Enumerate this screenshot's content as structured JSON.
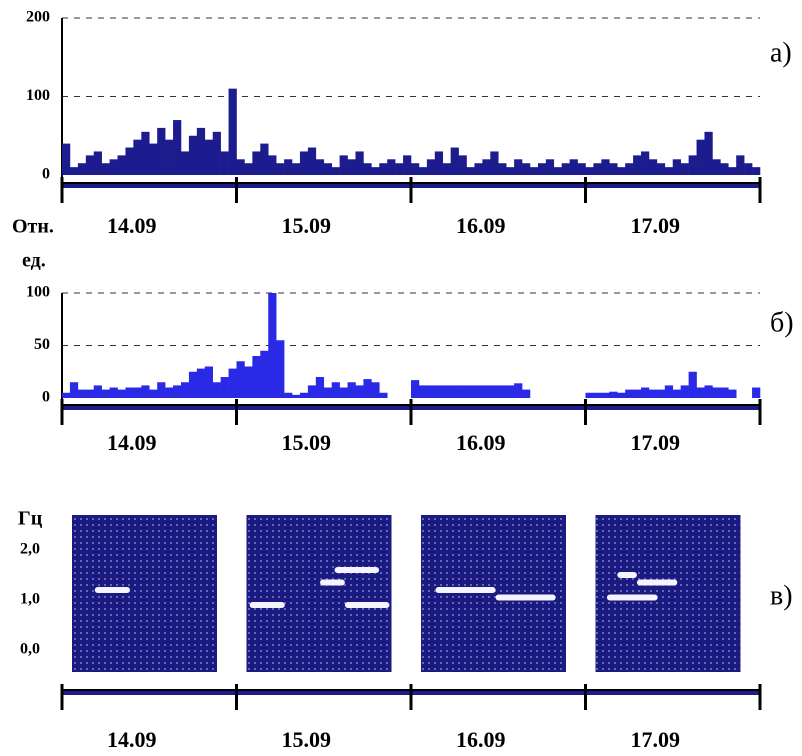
{
  "chart_data": [
    {
      "type": "bar",
      "panel_label": "а)",
      "color": "#1c1c8e",
      "days": [
        "14.09",
        "15.09",
        "16.09",
        "17.09"
      ],
      "values": [
        40,
        10,
        15,
        25,
        30,
        15,
        20,
        25,
        35,
        45,
        55,
        40,
        60,
        45,
        70,
        30,
        50,
        60,
        45,
        55,
        30,
        110,
        20,
        15,
        30,
        40,
        25,
        15,
        20,
        15,
        30,
        35,
        20,
        15,
        10,
        25,
        20,
        30,
        15,
        10,
        15,
        20,
        15,
        25,
        15,
        10,
        20,
        30,
        15,
        35,
        25,
        10,
        15,
        20,
        30,
        15,
        10,
        20,
        15,
        10,
        15,
        20,
        10,
        15,
        20,
        15,
        10,
        15,
        20,
        15,
        10,
        15,
        25,
        30,
        20,
        15,
        10,
        20,
        15,
        25,
        45,
        55,
        20,
        15,
        10,
        25,
        15,
        10
      ],
      "ylim": [
        0,
        200
      ],
      "yticks": [
        0,
        100,
        200
      ],
      "grid": true
    },
    {
      "type": "bar",
      "panel_label": "б)",
      "color": "#2a2ae6",
      "ylabel": [
        "Отн.",
        "ед."
      ],
      "days": [
        "14.09",
        "15.09",
        "16.09",
        "17.09"
      ],
      "values": [
        5,
        15,
        8,
        8,
        12,
        8,
        10,
        8,
        10,
        10,
        12,
        8,
        15,
        10,
        12,
        15,
        25,
        28,
        30,
        15,
        20,
        28,
        35,
        30,
        40,
        45,
        100,
        55,
        5,
        3,
        5,
        12,
        20,
        10,
        15,
        10,
        15,
        12,
        18,
        15,
        5,
        0,
        0,
        0,
        17,
        12,
        12,
        12,
        12,
        12,
        12,
        12,
        12,
        12,
        12,
        12,
        12,
        14,
        8,
        0,
        0,
        0,
        0,
        0,
        0,
        0,
        5,
        5,
        5,
        6,
        5,
        8,
        8,
        10,
        8,
        8,
        12,
        8,
        12,
        25,
        10,
        12,
        10,
        10,
        8,
        0,
        0,
        10
      ],
      "ylim": [
        0,
        100
      ],
      "yticks": [
        0,
        50,
        100
      ],
      "grid": true
    },
    {
      "type": "spectrogram",
      "panel_label": "в)",
      "ylabel": "Гц",
      "days": [
        "14.09",
        "15.09",
        "16.09",
        "17.09"
      ],
      "xlim": [
        0,
        7000
      ],
      "ylim": [
        0,
        2.7
      ],
      "yticks": [
        {
          "value": 0,
          "label": "0,0"
        },
        {
          "value": 1,
          "label": "1,0"
        },
        {
          "value": 2,
          "label": "2,0"
        }
      ],
      "streaks": [
        [
          {
            "x": [
              1100,
              2800
            ],
            "y": 1.2
          }
        ],
        [
          {
            "x": [
              150,
              1850
            ],
            "y": 0.9
          },
          {
            "x": [
              3550,
              4750
            ],
            "y": 1.35
          },
          {
            "x": [
              4250,
              6400
            ],
            "y": 1.6
          },
          {
            "x": [
              4750,
              6900
            ],
            "y": 0.9
          }
        ],
        [
          {
            "x": [
              700,
              3600
            ],
            "y": 1.2
          },
          {
            "x": [
              3600,
              6500
            ],
            "y": 1.05
          }
        ],
        [
          {
            "x": [
              1050,
              2000
            ],
            "y": 1.5
          },
          {
            "x": [
              2000,
              3950
            ],
            "y": 1.35
          },
          {
            "x": [
              550,
              3000
            ],
            "y": 1.05
          }
        ]
      ]
    }
  ]
}
